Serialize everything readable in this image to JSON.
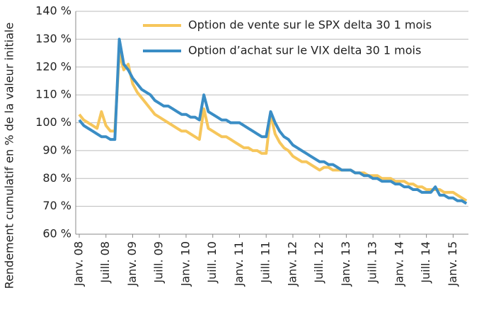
{
  "chart_data": {
    "type": "line",
    "y_label": "Rendement cumulatif en % de la valeur initiale",
    "categories": [
      "Janv. 08",
      null,
      null,
      null,
      null,
      null,
      "Juill. 08",
      null,
      null,
      null,
      null,
      null,
      "Janv. 09",
      null,
      null,
      null,
      null,
      null,
      "Juill. 09",
      null,
      null,
      null,
      null,
      null,
      "Janv. 10",
      null,
      null,
      null,
      null,
      null,
      "Juill. 10",
      null,
      null,
      null,
      null,
      null,
      "Janv. 11",
      null,
      null,
      null,
      null,
      null,
      "Juill. 11",
      null,
      null,
      null,
      null,
      null,
      "Janv. 12",
      null,
      null,
      null,
      null,
      null,
      "Juill. 12",
      null,
      null,
      null,
      null,
      null,
      "Janv. 13",
      null,
      null,
      null,
      null,
      null,
      "Juill. 13",
      null,
      null,
      null,
      null,
      null,
      "Janv. 14",
      null,
      null,
      null,
      null,
      null,
      "Juill. 14",
      null,
      null,
      null,
      null,
      null,
      "Janv. 15",
      null,
      null,
      null
    ],
    "series": [
      {
        "name": "Option de vente sur le SPX delta 30 1 mois",
        "color": "#f6c65b",
        "values": [
          103,
          101,
          100,
          99,
          98,
          104,
          99,
          97,
          97,
          125,
          119,
          121,
          114,
          111,
          109,
          107,
          105,
          103,
          102,
          101,
          100,
          99,
          98,
          97,
          97,
          96,
          95,
          94,
          105,
          98,
          97,
          96,
          95,
          95,
          94,
          93,
          92,
          91,
          91,
          90,
          90,
          89,
          89,
          103,
          96,
          93,
          91,
          90,
          88,
          87,
          86,
          86,
          85,
          84,
          83,
          84,
          84,
          83,
          83,
          83,
          83,
          83,
          82,
          82,
          82,
          81,
          81,
          81,
          80,
          80,
          80,
          79,
          79,
          79,
          78,
          78,
          77,
          77,
          76,
          76,
          76,
          76,
          75,
          75,
          75,
          74,
          73,
          72
        ]
      },
      {
        "name": "Option d’achat sur le VIX delta 30 1 mois",
        "color": "#3a8dc5",
        "values": [
          101,
          99,
          98,
          97,
          96,
          95,
          95,
          94,
          94,
          130,
          121,
          119,
          116,
          114,
          112,
          111,
          110,
          108,
          107,
          106,
          106,
          105,
          104,
          103,
          103,
          102,
          102,
          101,
          110,
          104,
          103,
          102,
          101,
          101,
          100,
          100,
          100,
          99,
          98,
          97,
          96,
          95,
          95,
          104,
          100,
          97,
          95,
          94,
          92,
          91,
          90,
          89,
          88,
          87,
          86,
          86,
          85,
          85,
          84,
          83,
          83,
          83,
          82,
          82,
          81,
          81,
          80,
          80,
          79,
          79,
          79,
          78,
          78,
          77,
          77,
          76,
          76,
          75,
          75,
          75,
          77,
          74,
          74,
          73,
          73,
          72,
          72,
          71
        ]
      }
    ],
    "ylim": [
      60,
      140
    ],
    "yticks": [
      {
        "value": 60,
        "label": "60 %"
      },
      {
        "value": 70,
        "label": "70 %"
      },
      {
        "value": 80,
        "label": "80 %"
      },
      {
        "value": 90,
        "label": "90 %"
      },
      {
        "value": 100,
        "label": "100 %"
      },
      {
        "value": 110,
        "label": "110 %"
      },
      {
        "value": 120,
        "label": "120 %"
      },
      {
        "value": 130,
        "label": "130 %"
      },
      {
        "value": 140,
        "label": "140 %"
      }
    ],
    "grid": true,
    "legend": "top-right"
  }
}
